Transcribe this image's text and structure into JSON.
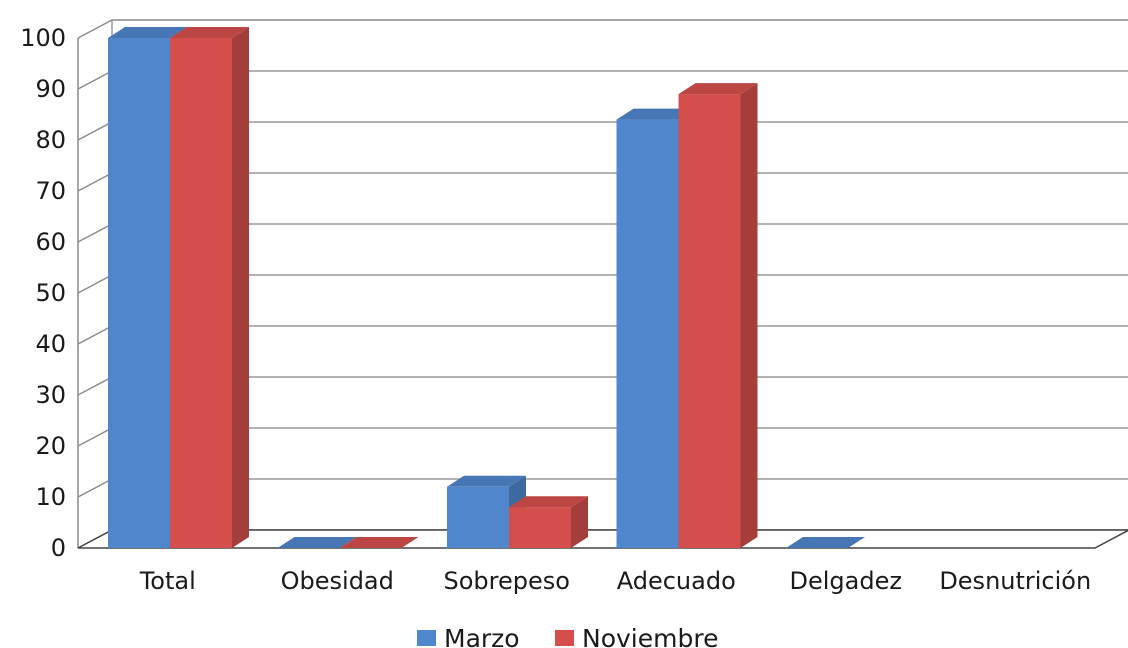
{
  "chart_data": {
    "type": "bar",
    "categories": [
      "Total",
      "Obesidad",
      "Sobrepeso",
      "Adecuado",
      "Delgadez",
      "Desnutrición"
    ],
    "series": [
      {
        "name": "Marzo",
        "color": "#4f86cc",
        "values": [
          100,
          0,
          12,
          84,
          0,
          null
        ]
      },
      {
        "name": "Noviembre",
        "color": "#d44f4c",
        "values": [
          100,
          0,
          8,
          89,
          null,
          null
        ]
      }
    ],
    "ylim": [
      0,
      100
    ],
    "yticks": [
      0,
      10,
      20,
      30,
      40,
      50,
      60,
      70,
      80,
      90,
      100
    ],
    "grid": true,
    "legend": "bottom",
    "style": "3d"
  }
}
